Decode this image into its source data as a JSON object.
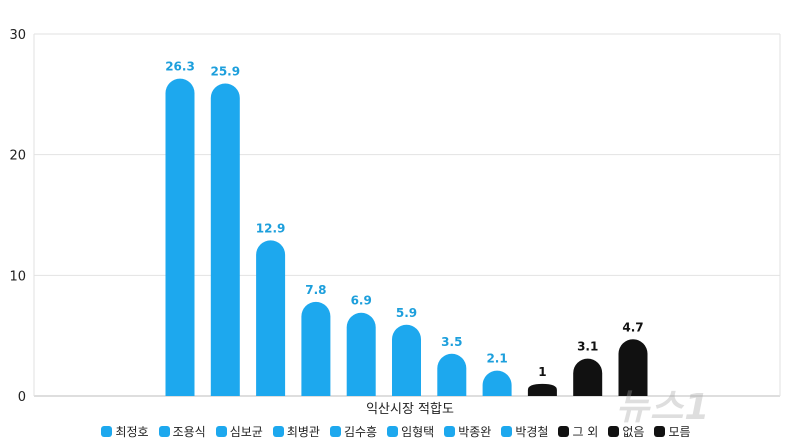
{
  "colors": {
    "candidate": "#1da8ee",
    "other": "#111111",
    "candidate_label": "#1d9fdc",
    "other_label": "#111111",
    "grid": "#e2e2e2",
    "axis": "#bdbdbd"
  },
  "watermark": "뉴스1",
  "chart_data": {
    "type": "bar",
    "xlabel": "익산시장 적합도",
    "ylim": [
      0,
      30
    ],
    "yticks": [
      0,
      10,
      20,
      30
    ],
    "grid": true,
    "legend_position": "bottom",
    "series": [
      {
        "name": "최정호",
        "value": 26.3,
        "color": "#1da8ee"
      },
      {
        "name": "조용식",
        "value": 25.9,
        "color": "#1da8ee"
      },
      {
        "name": "심보균",
        "value": 12.9,
        "color": "#1da8ee"
      },
      {
        "name": "최병관",
        "value": 7.8,
        "color": "#1da8ee"
      },
      {
        "name": "김수흥",
        "value": 6.9,
        "color": "#1da8ee"
      },
      {
        "name": "임형택",
        "value": 5.9,
        "color": "#1da8ee"
      },
      {
        "name": "박종완",
        "value": 3.5,
        "color": "#1da8ee"
      },
      {
        "name": "박경철",
        "value": 2.1,
        "color": "#1da8ee"
      },
      {
        "name": "그 외",
        "value": 1,
        "color": "#111111"
      },
      {
        "name": "없음",
        "value": 3.1,
        "color": "#111111"
      },
      {
        "name": "모름",
        "value": 4.7,
        "color": "#111111"
      }
    ]
  }
}
